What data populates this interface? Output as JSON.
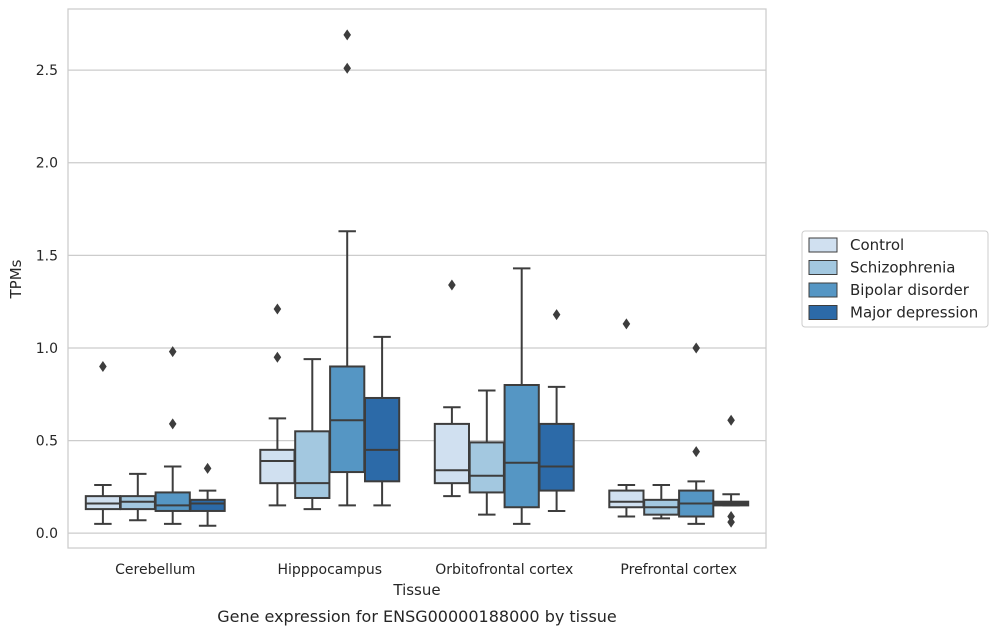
{
  "chart_data": {
    "type": "box",
    "xlabel": "Tissue",
    "ylabel": "TPMs",
    "caption": "Gene expression for ENSG00000188000 by tissue",
    "ylim": [
      -0.08,
      2.83
    ],
    "yticks": [
      0.0,
      0.5,
      1.0,
      1.5,
      2.0,
      2.5
    ],
    "ytick_labels": [
      "0.0",
      "0.5",
      "1.0",
      "1.5",
      "2.0",
      "2.5"
    ],
    "grid": "horizontal",
    "legend_position": "right",
    "categories": [
      "Cerebellum",
      "Hipppocampus",
      "Orbitofrontal cortex",
      "Prefrontal cortex"
    ],
    "series": [
      {
        "name": "Control",
        "color": "#d0e0f0",
        "boxes": [
          {
            "whisker_low": 0.05,
            "q1": 0.13,
            "median": 0.16,
            "q3": 0.2,
            "whisker_high": 0.26,
            "outliers": [
              0.9
            ]
          },
          {
            "whisker_low": 0.15,
            "q1": 0.27,
            "median": 0.39,
            "q3": 0.45,
            "whisker_high": 0.62,
            "outliers": [
              0.95,
              1.21
            ]
          },
          {
            "whisker_low": 0.2,
            "q1": 0.27,
            "median": 0.34,
            "q3": 0.59,
            "whisker_high": 0.68,
            "outliers": [
              1.34
            ]
          },
          {
            "whisker_low": 0.09,
            "q1": 0.14,
            "median": 0.17,
            "q3": 0.23,
            "whisker_high": 0.26,
            "outliers": [
              1.13
            ]
          }
        ]
      },
      {
        "name": "Schizophrenia",
        "color": "#a3c8e0",
        "boxes": [
          {
            "whisker_low": 0.07,
            "q1": 0.13,
            "median": 0.17,
            "q3": 0.2,
            "whisker_high": 0.32,
            "outliers": []
          },
          {
            "whisker_low": 0.13,
            "q1": 0.19,
            "median": 0.27,
            "q3": 0.55,
            "whisker_high": 0.94,
            "outliers": []
          },
          {
            "whisker_low": 0.1,
            "q1": 0.22,
            "median": 0.31,
            "q3": 0.49,
            "whisker_high": 0.77,
            "outliers": []
          },
          {
            "whisker_low": 0.08,
            "q1": 0.1,
            "median": 0.14,
            "q3": 0.18,
            "whisker_high": 0.26,
            "outliers": []
          }
        ]
      },
      {
        "name": "Bipolar disorder",
        "color": "#5596c4",
        "boxes": [
          {
            "whisker_low": 0.05,
            "q1": 0.12,
            "median": 0.15,
            "q3": 0.22,
            "whisker_high": 0.36,
            "outliers": [
              0.59,
              0.98
            ]
          },
          {
            "whisker_low": 0.15,
            "q1": 0.33,
            "median": 0.61,
            "q3": 0.9,
            "whisker_high": 1.63,
            "outliers": [
              2.51,
              2.69
            ]
          },
          {
            "whisker_low": 0.05,
            "q1": 0.14,
            "median": 0.38,
            "q3": 0.8,
            "whisker_high": 1.43,
            "outliers": []
          },
          {
            "whisker_low": 0.05,
            "q1": 0.09,
            "median": 0.16,
            "q3": 0.23,
            "whisker_high": 0.28,
            "outliers": [
              0.44,
              1.0
            ]
          }
        ]
      },
      {
        "name": "Major depression",
        "color": "#2c6aa8",
        "boxes": [
          {
            "whisker_low": 0.04,
            "q1": 0.12,
            "median": 0.16,
            "q3": 0.18,
            "whisker_high": 0.23,
            "outliers": [
              0.35
            ]
          },
          {
            "whisker_low": 0.15,
            "q1": 0.28,
            "median": 0.45,
            "q3": 0.73,
            "whisker_high": 1.06,
            "outliers": []
          },
          {
            "whisker_low": 0.12,
            "q1": 0.23,
            "median": 0.36,
            "q3": 0.59,
            "whisker_high": 0.79,
            "outliers": [
              1.18
            ]
          },
          {
            "whisker_low": 0.15,
            "q1": 0.15,
            "median": 0.16,
            "q3": 0.17,
            "whisker_high": 0.21,
            "outliers": [
              0.06,
              0.09,
              0.61
            ]
          }
        ]
      }
    ]
  }
}
